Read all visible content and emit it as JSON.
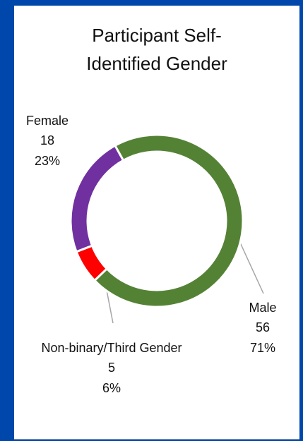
{
  "chart_data": {
    "type": "donut",
    "title": "Participant Self-Identified Gender",
    "categories": [
      "Male",
      "Non-binary/Third Gender",
      "Female"
    ],
    "values": [
      56,
      5,
      18
    ],
    "percent_labels": [
      "71%",
      "6%",
      "23%"
    ],
    "colors": [
      "#548235",
      "#ff0000",
      "#7030a0"
    ]
  }
}
